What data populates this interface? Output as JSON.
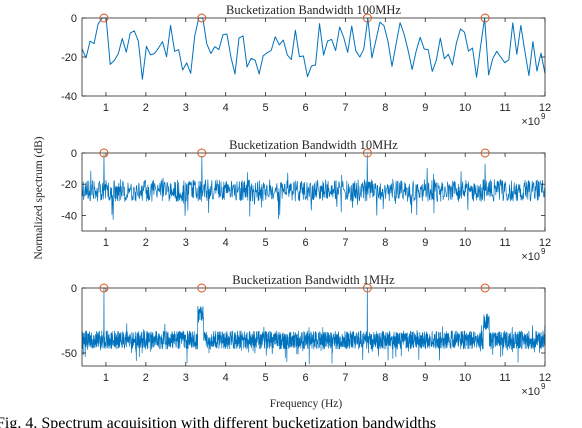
{
  "figure": {
    "ylabel": "Normalized spectrum (dB)",
    "xlabel": "Frequency (Hz)",
    "caption": "Fig. 4.  Spectrum acquisition with different bucketization bandwidths",
    "x_exponent_base": "×10",
    "x_exponent_power": "9"
  },
  "colors": {
    "line": "#0072BD",
    "marker": "#D95319",
    "axis": "#262626",
    "background": "#ffffff"
  },
  "chart_data": [
    {
      "type": "line",
      "title": "Bucketization Bandwidth 100MHz",
      "xlim": [
        0.4,
        12
      ],
      "ylim": [
        -40,
        0
      ],
      "xticks": [
        1,
        2,
        3,
        4,
        5,
        6,
        7,
        8,
        9,
        10,
        11,
        12
      ],
      "xtick_labels": [
        "1",
        "2",
        "3",
        "4",
        "5",
        "6",
        "7",
        "8",
        "9",
        "10",
        "11",
        "12"
      ],
      "yticks": [
        0,
        -20,
        -40
      ],
      "ytick_labels": [
        "0",
        "-20",
        "-40"
      ],
      "peaks_x": [
        0.95,
        3.4,
        7.55,
        10.5
      ],
      "peaks_y": [
        0,
        0,
        0,
        0
      ],
      "noise": {
        "points": 116,
        "mean": -16,
        "spread": 16,
        "seed": 11
      },
      "series": [
        {
          "values": [
            -15.8,
            -20.4,
            -11.9,
            -13.1,
            -3.1,
            -4.2,
            -22.7,
            -23.8,
            -21.8,
            -18.4,
            -10.5,
            -17.5,
            -7.7,
            -6.6,
            -11.9,
            -31.4,
            -14.5,
            -18.9,
            -18.2,
            -15.4,
            -12.1,
            -19.9,
            -3.8,
            -17.1,
            -16.2,
            -26.7,
            -23.0,
            -28.4,
            -9.2,
            -2.1,
            -9.5,
            -13.3,
            -18.2,
            -14.7,
            -16.2,
            -8.6,
            -8.2,
            -20.1,
            -28.7,
            -10.2,
            -9.2,
            -25.1,
            -20.7,
            -21.6,
            -28.7,
            -19.4,
            -17.8,
            -16.6,
            -9.6,
            -13.8,
            -11.3,
            -19.0,
            -21.3,
            -6.3,
            -19.8,
            -19.5,
            -30.1,
            -24.6,
            -24.1,
            -2.9,
            -19.0,
            -11.8,
            -11.0,
            -16.7,
            -4.6,
            -10.0,
            -17.6,
            -4.1,
            -16.9,
            -20.0,
            -15.8,
            -28.4,
            -20.5,
            -11.5,
            -2.1,
            -3.9,
            -12.0,
            -24.8,
            -13.5,
            -2.4,
            -8.2,
            -16.6,
            -26.4,
            -17.0,
            -9.9,
            -15.9,
            -16.3,
            -27.4,
            -21.7,
            -10.3,
            -20.9,
            -18.6,
            -24.1,
            -12.8,
            -5.6,
            -7.3,
            -17.0,
            -15.4,
            -30.4,
            -14.6,
            -27.0,
            -29.2,
            -21.0,
            -17.1,
            -20.0,
            -22.9,
            -21.5,
            -2.5,
            -18.6,
            -3.8,
            -17.1,
            -29.5,
            -12.1,
            -27.2,
            -18.0,
            -28.4
          ]
        }
      ]
    },
    {
      "type": "line",
      "title": "Bucketization Bandwidth 10MHz",
      "xlim": [
        0.4,
        12
      ],
      "ylim": [
        -50,
        0
      ],
      "xticks": [
        1,
        2,
        3,
        4,
        5,
        6,
        7,
        8,
        9,
        10,
        11,
        12
      ],
      "xtick_labels": [
        "1",
        "2",
        "3",
        "4",
        "5",
        "6",
        "7",
        "8",
        "9",
        "10",
        "11",
        "12"
      ],
      "yticks": [
        0,
        -20,
        -40
      ],
      "ytick_labels": [
        "0",
        "-20",
        "-40"
      ],
      "peaks_x": [
        0.95,
        3.4,
        7.55,
        10.5
      ],
      "peaks_y": [
        0,
        0,
        0,
        0
      ],
      "noise": {
        "points": 1160,
        "mean": -24,
        "spread": 7,
        "seed": 23
      },
      "spikes": [
        {
          "x": 0.95,
          "y": -1
        },
        {
          "x": 3.4,
          "y": -2
        },
        {
          "x": 7.55,
          "y": -1
        },
        {
          "x": 10.5,
          "y": -7
        }
      ]
    },
    {
      "type": "line",
      "title": "Bucketization Bandwidth 1MHz",
      "xlim": [
        0.4,
        12
      ],
      "ylim": [
        -60,
        0
      ],
      "xticks": [
        1,
        2,
        3,
        4,
        5,
        6,
        7,
        8,
        9,
        10,
        11,
        12
      ],
      "xtick_labels": [
        "1",
        "2",
        "3",
        "4",
        "5",
        "6",
        "7",
        "8",
        "9",
        "10",
        "11",
        "12"
      ],
      "yticks": [
        0,
        -50
      ],
      "ytick_labels": [
        "0",
        "-50"
      ],
      "peaks_x": [
        0.95,
        3.4,
        7.55,
        10.5
      ],
      "peaks_y": [
        0,
        0,
        0,
        0
      ],
      "noise": {
        "points": 2320,
        "mean": -40,
        "spread": 7,
        "seed": 41
      },
      "spikes": [
        {
          "x": 0.95,
          "y": 0
        },
        {
          "x": 7.55,
          "y": 0
        }
      ],
      "bumps": [
        {
          "x0": 3.3,
          "x1": 3.45,
          "y": -20
        },
        {
          "x0": 10.45,
          "x1": 10.6,
          "y": -26
        }
      ]
    }
  ]
}
